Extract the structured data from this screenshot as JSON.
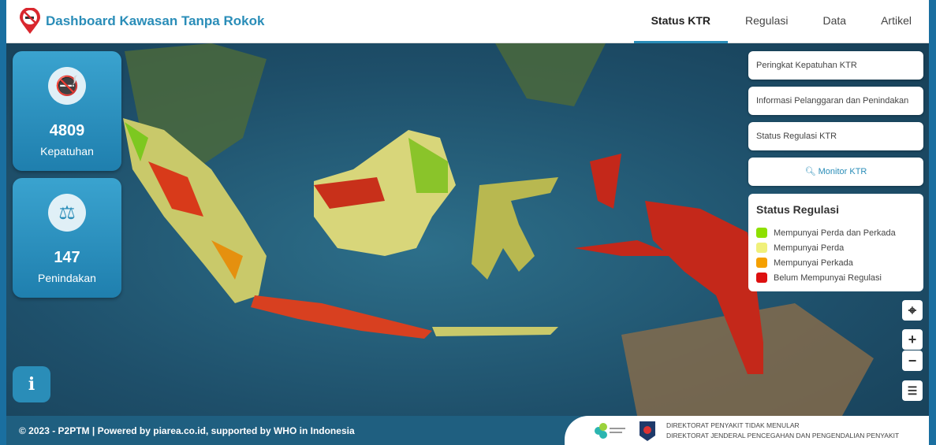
{
  "header": {
    "title": "Dashboard Kawasan Tanpa Rokok",
    "nav": [
      "Status KTR",
      "Regulasi",
      "Data",
      "Artikel"
    ],
    "active": "Status KTR"
  },
  "stats": [
    {
      "value": "4809",
      "label": "Kepatuhan",
      "icon": "no-smoking-icon"
    },
    {
      "value": "147",
      "label": "Penindakan",
      "icon": "scale-icon"
    }
  ],
  "panel": {
    "buttons": [
      "Peringkat Kepatuhan KTR",
      "Informasi Pelanggaran dan Penindakan",
      "Status Regulasi KTR"
    ],
    "monitor": "Monitor KTR"
  },
  "legend": {
    "title": "Status Regulasi",
    "items": [
      {
        "label": "Mempunyai Perda dan Perkada",
        "color": "#8ee000"
      },
      {
        "label": "Mempunyai Perda",
        "color": "#f0f07a"
      },
      {
        "label": "Mempunyai Perkada",
        "color": "#f5a000"
      },
      {
        "label": "Belum Mempunyai Regulasi",
        "color": "#dd1010"
      }
    ]
  },
  "controls": {
    "zoom_in": "+",
    "zoom_out": "−"
  },
  "footer": {
    "left": "© 2023 - P2PTM | Powered by piarea.co.id, supported by WHO in Indonesia",
    "line1": "DIREKTORAT PENYAKIT TIDAK MENULAR",
    "line2": "DIREKTORAT JENDERAL PENCEGAHAN DAN PENGENDALIAN PENYAKIT"
  }
}
